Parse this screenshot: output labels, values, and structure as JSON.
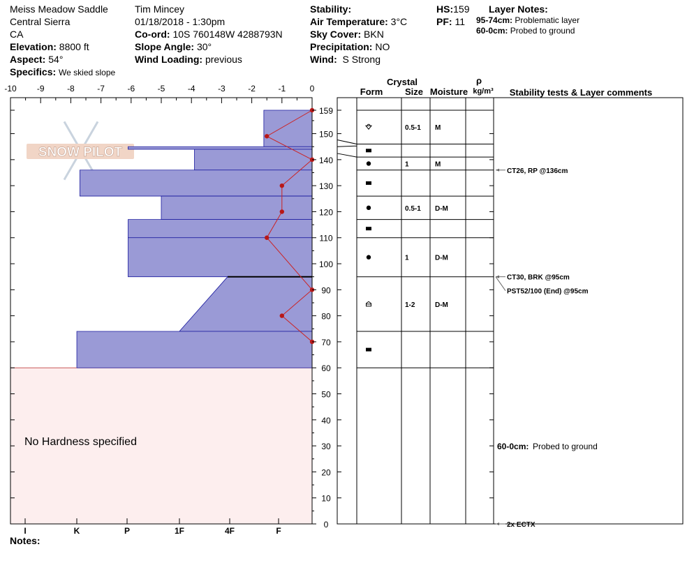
{
  "header": {
    "location": "Meiss Meadow Saddle",
    "range": "Central Sierra",
    "state": "CA",
    "elevation_label": "Elevation:",
    "elevation": "8800 ft",
    "aspect_label": "Aspect:",
    "aspect": "54°",
    "specifics_label": "Specifics:",
    "specifics": "We skied slope",
    "observer": "Tim Mincey",
    "datetime": "01/18/2018 - 1:30pm",
    "coord_label": "Co-ord:",
    "coord": "10S 760148W 4288793N",
    "slope_label": "Slope Angle:",
    "slope": "30°",
    "wind_loading_label": "Wind Loading:",
    "wind_loading": "previous",
    "stability_label": "Stability:",
    "stability": "",
    "air_temp_label": "Air Temperature:",
    "air_temp": "3°C",
    "sky_label": "Sky Cover:",
    "sky": "BKN",
    "precip_label": "Precipitation:",
    "precip": "NO",
    "wind_label": "Wind:",
    "wind": "S Strong",
    "hs_label": "HS:",
    "hs": "159",
    "pf_label": "PF:",
    "pf": "11",
    "layer_notes_label": "Layer Notes:",
    "layer_notes": [
      {
        "range": "95-74cm:",
        "text": "Problematic layer"
      },
      {
        "range": "60-0cm:",
        "text": "Probed to ground"
      }
    ]
  },
  "logo_text": "SNOW PILOT",
  "no_hardness_text": "No Hardness specified",
  "notes_label": "Notes:",
  "columns": {
    "crystal": "Crystal",
    "form": "Form",
    "size": "Size",
    "moisture": "Moisture",
    "rho": "ρ",
    "density_unit": "kg/m³",
    "stability": "Stability tests & Layer comments"
  },
  "hardness_ticks": [
    "I",
    "K",
    "P",
    "1F",
    "4F",
    "F"
  ],
  "colors": {
    "profile_fill": "#9a9ad6",
    "profile_stroke": "#1a1a9e",
    "temp_line": "#cc2222",
    "no_hardness_fill": "#fdeeee"
  },
  "chart_data": {
    "type": "snow-profile",
    "temperature_axis": {
      "min": -10,
      "max": 0,
      "ticks": [
        "-10",
        "-9",
        "-8",
        "-7",
        "-6",
        "-5",
        "-4",
        "-3",
        "-2",
        "-1",
        "0"
      ]
    },
    "depth_axis": {
      "min": 0,
      "max": 159,
      "ticks": [
        "159",
        "150",
        "140",
        "130",
        "120",
        "110",
        "100",
        "90",
        "80",
        "70",
        "60",
        "50",
        "40",
        "30",
        "20",
        "10",
        "0"
      ]
    },
    "hardness_layers": [
      {
        "top": 159,
        "bottom": 145,
        "hardness_top": -1.6,
        "hardness_bottom": -1.6
      },
      {
        "top": 145,
        "bottom": 144,
        "hardness_top": -6.1,
        "hardness_bottom": -6.1
      },
      {
        "top": 144,
        "bottom": 136,
        "hardness_top": -3.9,
        "hardness_bottom": -3.9
      },
      {
        "top": 136,
        "bottom": 126,
        "hardness_top": -7.7,
        "hardness_bottom": -7.7
      },
      {
        "top": 126,
        "bottom": 117,
        "hardness_top": -5.0,
        "hardness_bottom": -5.0
      },
      {
        "top": 117,
        "bottom": 110,
        "hardness_top": -6.1,
        "hardness_bottom": -6.1
      },
      {
        "top": 110,
        "bottom": 95,
        "hardness_top": -6.1,
        "hardness_bottom": -6.1
      },
      {
        "top": 95,
        "bottom": 74,
        "hardness_top": -2.8,
        "hardness_bottom": -4.4
      },
      {
        "top": 74,
        "bottom": 60,
        "hardness_top": -7.8,
        "hardness_bottom": -7.8
      }
    ],
    "temperature_profile": [
      {
        "depth": 159,
        "temp": 0
      },
      {
        "depth": 149,
        "temp": -1.5
      },
      {
        "depth": 140,
        "temp": 0
      },
      {
        "depth": 130,
        "temp": -1
      },
      {
        "depth": 120,
        "temp": -1
      },
      {
        "depth": 110,
        "temp": -1.5
      },
      {
        "depth": 90,
        "temp": 0
      },
      {
        "depth": 80,
        "temp": -1
      },
      {
        "depth": 70,
        "temp": 0
      }
    ],
    "layers": [
      {
        "top": 159,
        "bottom": 146,
        "form": "facet-rounding",
        "size": "0.5-1",
        "moisture": "M"
      },
      {
        "top": 146,
        "bottom": 141,
        "form": "ice",
        "size": "",
        "moisture": ""
      },
      {
        "top": 141,
        "bottom": 136,
        "form": "round",
        "size": "1",
        "moisture": "M"
      },
      {
        "top": 136,
        "bottom": 126,
        "form": "ice",
        "size": "",
        "moisture": ""
      },
      {
        "top": 126,
        "bottom": 117,
        "form": "round",
        "size": "0.5-1",
        "moisture": "D-M"
      },
      {
        "top": 117,
        "bottom": 110,
        "form": "ice",
        "size": "",
        "moisture": ""
      },
      {
        "top": 110,
        "bottom": 95,
        "form": "round",
        "size": "1",
        "moisture": "D-M"
      },
      {
        "top": 95,
        "bottom": 74,
        "form": "depth-hoar",
        "size": "1-2",
        "moisture": "D-M"
      },
      {
        "top": 74,
        "bottom": 60,
        "form": "ice",
        "size": "",
        "moisture": ""
      }
    ],
    "comments": [
      {
        "depth": 136,
        "text": "CT26, RP @136cm"
      },
      {
        "depth": 95,
        "text": "CT30, BRK @95cm"
      },
      {
        "depth": 95,
        "text": "PST52/100 (End) @95cm"
      },
      {
        "depth": 30,
        "label": "60-0cm:",
        "text": "Probed to ground"
      },
      {
        "depth": 0,
        "text": "2x ECTX"
      }
    ]
  }
}
